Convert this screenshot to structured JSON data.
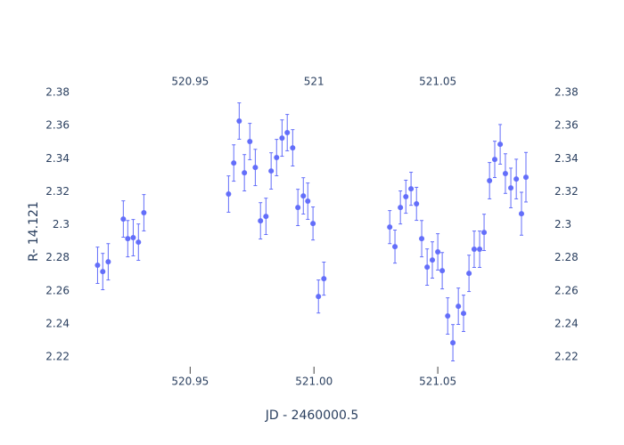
{
  "chart_data": {
    "type": "scatter",
    "x_label": "JD - 2460000.5",
    "y_label": "R- 14.121",
    "color": "#636efa",
    "grid": false,
    "xlim": [
      520.902,
      521.0964
    ],
    "ylim": [
      2.2098,
      2.3822
    ],
    "xticks": [
      520.95,
      {
        "value": 521,
        "label": "521.00"
      },
      521.05
    ],
    "x2ticks": [
      520.95,
      521,
      521.05
    ],
    "yticks": [
      2.22,
      2.24,
      2.26,
      2.28,
      2.3,
      2.32,
      2.34,
      2.36,
      2.38
    ],
    "x": [
      520.9126,
      520.9147,
      520.9169,
      520.923,
      520.9248,
      520.927,
      520.9291,
      520.9313,
      520.9655,
      520.9676,
      520.9698,
      520.9719,
      520.9741,
      520.9763,
      520.9784,
      520.9806,
      520.9827,
      520.9849,
      520.9871,
      520.9892,
      520.9914,
      520.9935,
      520.9957,
      520.9975,
      520.9996,
      521.0018,
      521.004,
      521.0306,
      521.0327,
      521.0349,
      521.0371,
      521.0392,
      521.0414,
      521.0435,
      521.0457,
      521.0478,
      521.05,
      521.0518,
      521.054,
      521.0561,
      521.0583,
      521.0604,
      521.0626,
      521.0647,
      521.0669,
      521.0687,
      521.0709,
      521.073,
      521.0752,
      521.0773,
      521.0795,
      521.0817,
      521.0838,
      521.0856
    ],
    "values": [
      2.2755,
      2.2717,
      2.2776,
      2.3035,
      2.2916,
      2.2922,
      2.2895,
      2.3073,
      2.3186,
      2.3374,
      2.3628,
      2.3315,
      2.3504,
      2.3347,
      2.3024,
      2.3051,
      2.3326,
      2.3407,
      2.3525,
      2.3558,
      2.3466,
      2.3105,
      2.3175,
      2.3143,
      2.3008,
      2.2566,
      2.2674,
      2.2986,
      2.2868,
      2.3105,
      2.317,
      2.3218,
      2.3127,
      2.2916,
      2.2744,
      2.2787,
      2.2836,
      2.2722,
      2.2448,
      2.2286,
      2.2507,
      2.2464,
      2.2706,
      2.2852,
      2.2852,
      2.2954,
      2.3267,
      2.3396,
      2.3487,
      2.331,
      2.3223,
      2.3277,
      2.3067,
      2.3288
    ],
    "error": [
      0.011,
      0.011,
      0.011,
      0.011,
      0.011,
      0.011,
      0.011,
      0.011,
      0.011,
      0.011,
      0.011,
      0.011,
      0.011,
      0.011,
      0.011,
      0.011,
      0.011,
      0.011,
      0.011,
      0.011,
      0.011,
      0.011,
      0.011,
      0.011,
      0.01,
      0.01,
      0.01,
      0.01,
      0.01,
      0.01,
      0.01,
      0.01,
      0.01,
      0.011,
      0.011,
      0.011,
      0.011,
      0.011,
      0.011,
      0.011,
      0.011,
      0.011,
      0.011,
      0.011,
      0.011,
      0.011,
      0.011,
      0.011,
      0.012,
      0.012,
      0.012,
      0.012,
      0.013,
      0.015
    ]
  }
}
